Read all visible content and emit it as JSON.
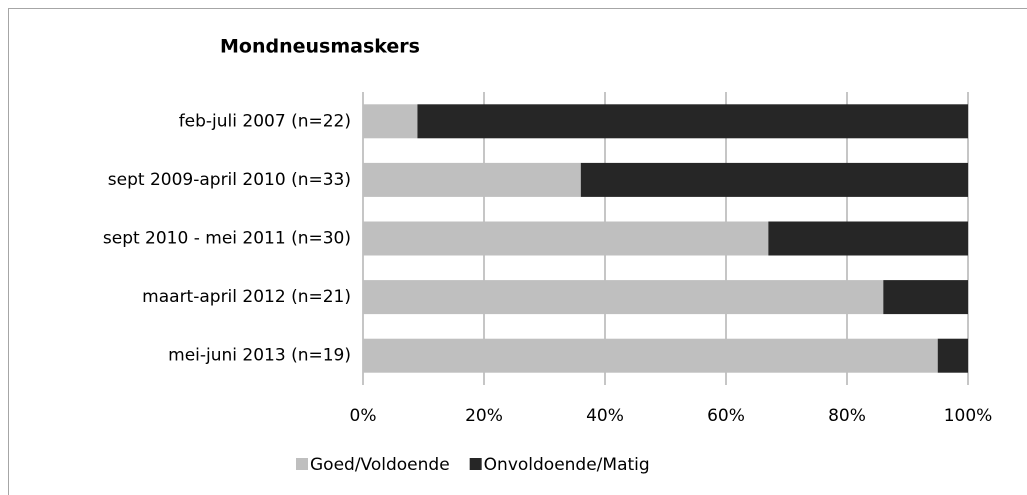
{
  "chart_data": {
    "type": "stacked_bar_horizontal",
    "title": "Mondneusmaskers",
    "categories": [
      "feb-juli 2007 (n=22)",
      "sept 2009-april 2010 (n=33)",
      "sept 2010 - mei 2011 (n=30)",
      "maart-april 2012 (n=21)",
      "mei-juni 2013 (n=19)"
    ],
    "series": [
      {
        "name": "Goed/Voldoende",
        "color": "#bfbfbf",
        "values": [
          9,
          36,
          67,
          86,
          95
        ]
      },
      {
        "name": "Onvoldoende/Matig",
        "color": "#262626",
        "values": [
          91,
          64,
          33,
          14,
          5
        ]
      }
    ],
    "xlim": [
      0,
      100
    ],
    "xticks": [
      {
        "value": 0,
        "label": "0%"
      },
      {
        "value": 20,
        "label": "20%"
      },
      {
        "value": 40,
        "label": "40%"
      },
      {
        "value": 60,
        "label": "60%"
      },
      {
        "value": 80,
        "label": "80%"
      },
      {
        "value": 100,
        "label": "100%"
      }
    ],
    "grid": true,
    "legend": "bottom"
  }
}
